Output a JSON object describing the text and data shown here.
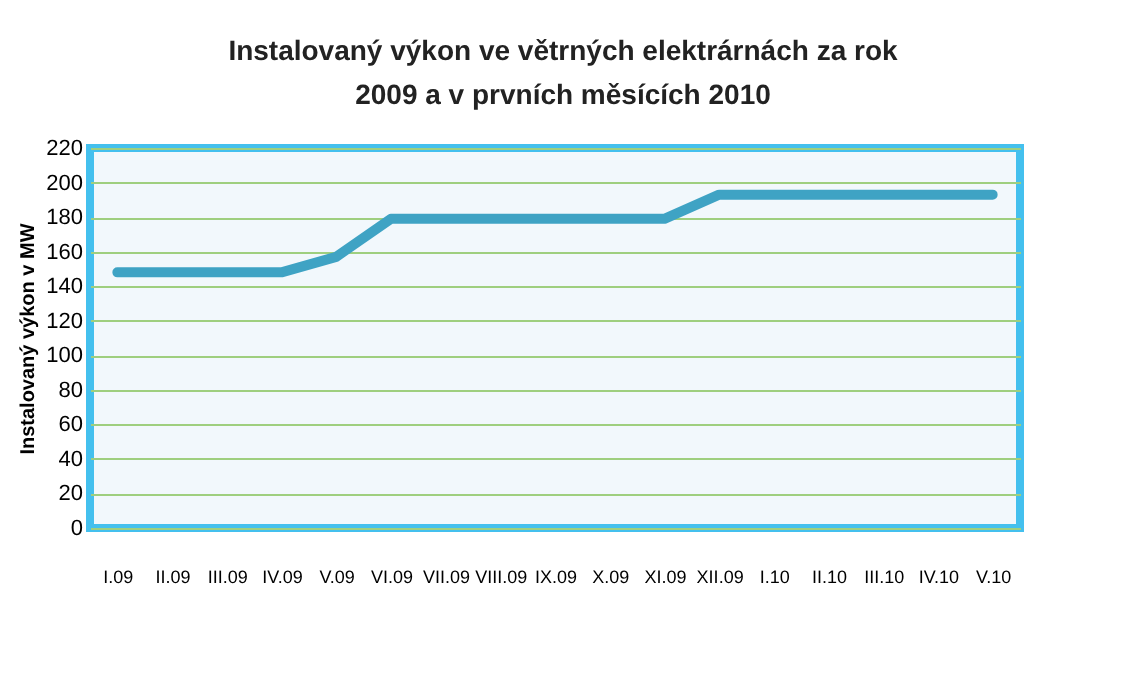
{
  "chart_data": {
    "type": "line",
    "title": "Instalovaný výkon ve větrných elektrárnách za rok 2009 a v prvních měsících 2010",
    "ylabel": "Instalovaný výkon v MW",
    "categories": [
      "I.09",
      "II.09",
      "III.09",
      "IV.09",
      "V.09",
      "VI.09",
      "VII.09",
      "VIII.09",
      "IX.09",
      "X.09",
      "XI.09",
      "XII.09",
      "I.10",
      "II.10",
      "III.10",
      "IV.10",
      "V.10"
    ],
    "series": [
      {
        "color": "#3fa3c4",
        "values": [
          148,
          148,
          148,
          148,
          157,
          179,
          179,
          179,
          179,
          179,
          179,
          193,
          193,
          193,
          193,
          193,
          193
        ]
      }
    ],
    "ylim": [
      0,
      220
    ],
    "yticks": [
      0,
      20,
      40,
      60,
      80,
      100,
      120,
      140,
      160,
      180,
      200,
      220
    ],
    "grid": "y",
    "marker": "none",
    "line_style": "solid"
  }
}
